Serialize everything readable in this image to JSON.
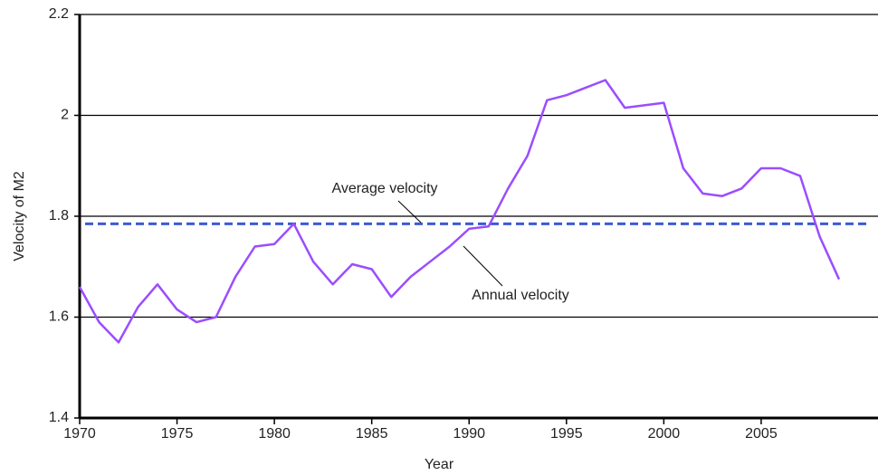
{
  "chart_data": {
    "type": "line",
    "xlabel": "Year",
    "ylabel": "Velocity of M2",
    "x": [
      1970,
      1971,
      1972,
      1973,
      1974,
      1975,
      1976,
      1977,
      1978,
      1979,
      1980,
      1981,
      1982,
      1983,
      1984,
      1985,
      1986,
      1987,
      1988,
      1989,
      1990,
      1991,
      1992,
      1993,
      1994,
      1995,
      1996,
      1997,
      1998,
      1999,
      2000,
      2001,
      2002,
      2003,
      2004,
      2005,
      2006,
      2007,
      2008,
      2009
    ],
    "series": [
      {
        "name": "Annual velocity",
        "color": "#9b4dff",
        "values": [
          1.66,
          1.59,
          1.55,
          1.62,
          1.665,
          1.615,
          1.59,
          1.6,
          1.68,
          1.74,
          1.745,
          1.785,
          1.71,
          1.665,
          1.705,
          1.695,
          1.64,
          1.68,
          1.71,
          1.74,
          1.775,
          1.78,
          1.855,
          1.92,
          2.03,
          2.04,
          2.055,
          2.07,
          2.015,
          2.02,
          2.025,
          1.895,
          1.845,
          1.84,
          1.855,
          1.895,
          1.895,
          1.88,
          1.76,
          1.675
        ]
      }
    ],
    "average": {
      "name": "Average velocity",
      "value": 1.785,
      "color": "#3b5bd6"
    },
    "xlim": [
      1970,
      2011
    ],
    "xticks": [
      1970,
      1975,
      1980,
      1985,
      1990,
      1995,
      2000,
      2005
    ],
    "ylim": [
      1.4,
      2.2
    ],
    "yticks": [
      1.4,
      1.6,
      1.8,
      2,
      2.2
    ],
    "grid": true
  }
}
